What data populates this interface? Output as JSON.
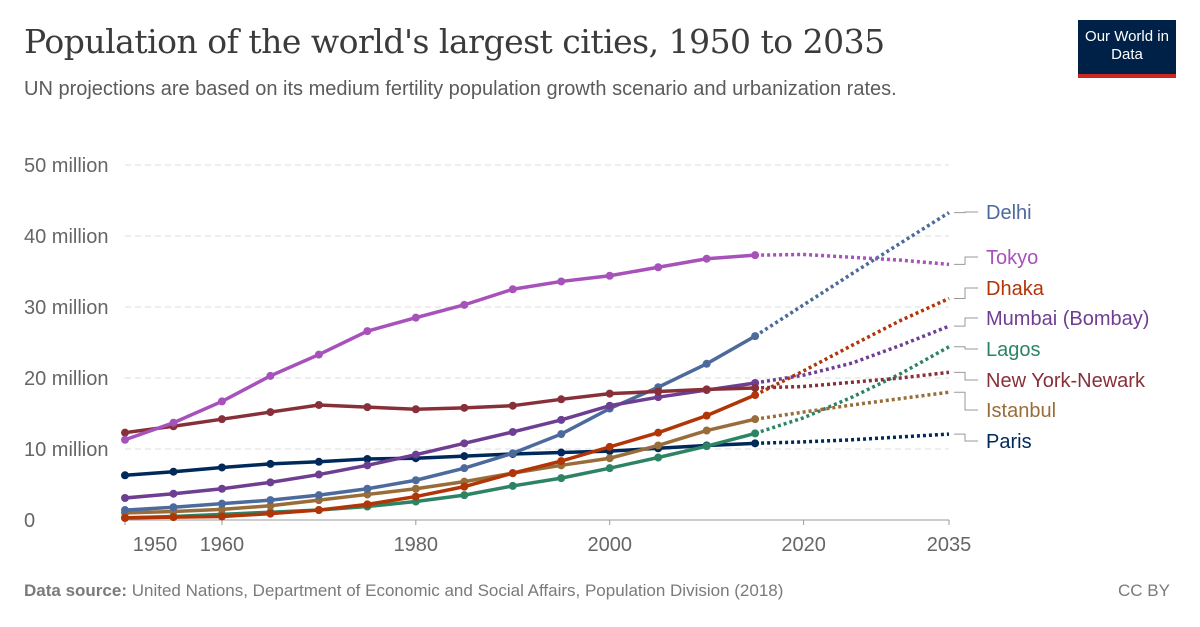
{
  "title": "Population of the world's largest cities, 1950 to 2035",
  "subtitle": "UN projections are based on its medium fertility population growth scenario and urbanization rates.",
  "logo": "Our World in Data",
  "footer": {
    "source_label": "Data source:",
    "source": "United Nations, Department of Economic and Social Affairs, Population Division (2018)",
    "license": "CC BY"
  },
  "chart_data": {
    "type": "line",
    "title": "Population of the world's largest cities, 1950 to 2035",
    "x": [
      1950,
      1955,
      1960,
      1965,
      1970,
      1975,
      1980,
      1985,
      1990,
      1995,
      2000,
      2005,
      2010,
      2015,
      2020,
      2025,
      2030,
      2035
    ],
    "projection_from": 2015,
    "xlim": [
      1950,
      2035
    ],
    "ylim": [
      0,
      50000000
    ],
    "x_ticks": [
      1950,
      1960,
      1980,
      2000,
      2020,
      2035
    ],
    "y_ticks": [
      {
        "v": 0,
        "label": "0"
      },
      {
        "v": 10000000,
        "label": "10 million"
      },
      {
        "v": 20000000,
        "label": "20 million"
      },
      {
        "v": 30000000,
        "label": "30 million"
      },
      {
        "v": 40000000,
        "label": "40 million"
      },
      {
        "v": 50000000,
        "label": "50 million"
      }
    ],
    "grid": "horizontal dashed",
    "legend": "right, line-end labels",
    "series": [
      {
        "name": "Delhi",
        "color": "#4C6A9C",
        "values": [
          1.4,
          1.8,
          2.3,
          2.8,
          3.5,
          4.4,
          5.6,
          7.3,
          9.4,
          12.1,
          15.7,
          18.7,
          22.0,
          25.9,
          30.3,
          34.7,
          39.0,
          43.3
        ]
      },
      {
        "name": "Tokyo",
        "color": "#A652BA",
        "values": [
          11.3,
          13.7,
          16.7,
          20.3,
          23.3,
          26.6,
          28.5,
          30.3,
          32.5,
          33.6,
          34.4,
          35.6,
          36.8,
          37.3,
          37.4,
          37.0,
          36.6,
          36.0
        ]
      },
      {
        "name": "Dhaka",
        "color": "#B13507",
        "values": [
          0.3,
          0.4,
          0.5,
          0.9,
          1.4,
          2.2,
          3.3,
          4.7,
          6.6,
          8.3,
          10.3,
          12.3,
          14.7,
          17.6,
          21.0,
          24.6,
          28.1,
          31.2
        ]
      },
      {
        "name": "Mumbai (Bombay)",
        "color": "#6D3E91",
        "values": [
          3.1,
          3.7,
          4.4,
          5.3,
          6.4,
          7.7,
          9.2,
          10.8,
          12.4,
          14.1,
          16.1,
          17.3,
          18.3,
          19.3,
          20.4,
          22.1,
          24.6,
          27.3
        ]
      },
      {
        "name": "Lagos",
        "color": "#2C8465",
        "values": [
          0.3,
          0.5,
          0.8,
          1.1,
          1.4,
          1.9,
          2.6,
          3.5,
          4.8,
          5.9,
          7.3,
          8.8,
          10.4,
          12.2,
          14.4,
          17.3,
          20.6,
          24.4
        ]
      },
      {
        "name": "New York-Newark",
        "color": "#883039",
        "values": [
          12.3,
          13.2,
          14.2,
          15.2,
          16.2,
          15.9,
          15.6,
          15.8,
          16.1,
          17.0,
          17.8,
          18.1,
          18.4,
          18.6,
          18.8,
          19.4,
          20.0,
          20.8
        ]
      },
      {
        "name": "Istanbul",
        "color": "#996D39",
        "values": [
          1.0,
          1.2,
          1.5,
          2.0,
          2.8,
          3.6,
          4.4,
          5.4,
          6.6,
          7.7,
          8.7,
          10.5,
          12.6,
          14.2,
          15.2,
          16.2,
          17.1,
          18.0
        ]
      },
      {
        "name": "Paris",
        "color": "#00295B",
        "values": [
          6.3,
          6.8,
          7.4,
          7.9,
          8.2,
          8.6,
          8.7,
          9.0,
          9.3,
          9.5,
          9.7,
          10.1,
          10.5,
          10.8,
          11.0,
          11.3,
          11.7,
          12.1
        ]
      }
    ],
    "value_unit": "million"
  }
}
